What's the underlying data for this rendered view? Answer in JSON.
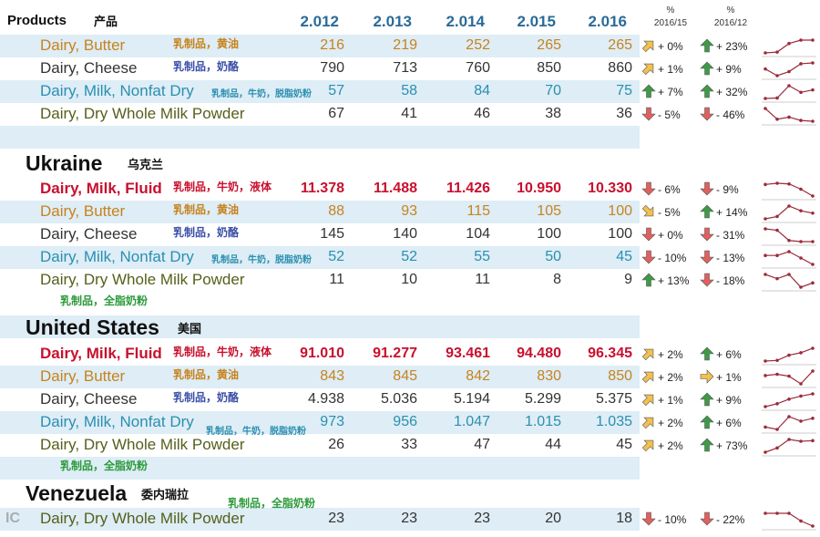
{
  "header": {
    "products_label": "Products",
    "products_cn": "产品",
    "years": [
      "2.012",
      "2.013",
      "2.014",
      "2.015",
      "2.016"
    ],
    "pct_col1": [
      "%",
      "2016/15"
    ],
    "pct_col2": [
      "%",
      "2016/12"
    ]
  },
  "colors": {
    "band": "#deedf6",
    "fluid": "#c8102e",
    "butter": "#c7831d",
    "cheese": "#333333",
    "nonfat": "#2b8fb0",
    "whole": "#55601a",
    "cn_butter": "#c7831d",
    "cn_cheese": "#3a4fa8",
    "cn_nonfat": "#2b8fb0",
    "cn_whole": "#2c9a3a",
    "cn_fluid": "#c8102e",
    "up_arrow": "#3e9a47",
    "down_arrow": "#e0605e",
    "diag_arrow": "#f2c14e",
    "spark": "#9b2c3a"
  },
  "chart_data": {
    "type": "table",
    "columns": [
      "Products",
      "2.012",
      "2.013",
      "2.014",
      "2.015",
      "2.016",
      "% 2016/15",
      "% 2016/12"
    ],
    "sections": [
      {
        "name": "",
        "name_cn": "",
        "rows": [
          {
            "product": "Dairy, Butter",
            "cn": "乳制品，黄油",
            "kind": "butter",
            "values": [
              216,
              219,
              252,
              265,
              265
            ],
            "display": [
              "216",
              "219",
              "252",
              "265",
              "265"
            ],
            "chg1": "+ 0%",
            "arrow1": "diag-up",
            "chg2": "+ 23%",
            "arrow2": "up"
          },
          {
            "product": "Dairy, Cheese",
            "cn": "乳制品，奶酪",
            "kind": "cheese",
            "values": [
              790,
              713,
              760,
              850,
              860
            ],
            "display": [
              "790",
              "713",
              "760",
              "850",
              "860"
            ],
            "chg1": "+ 1%",
            "arrow1": "diag-up",
            "chg2": "+ 9%",
            "arrow2": "up"
          },
          {
            "product": "Dairy, Milk, Nonfat Dry",
            "cn": "乳制品，牛奶，脱脂奶粉",
            "kind": "nonfat",
            "values": [
              57,
              58,
              84,
              70,
              75
            ],
            "display": [
              "57",
              "58",
              "84",
              "70",
              "75"
            ],
            "chg1": "+ 7%",
            "arrow1": "up",
            "chg2": "+ 32%",
            "arrow2": "up"
          },
          {
            "product": "Dairy, Dry Whole Milk Powder",
            "cn": "",
            "kind": "whole",
            "values": [
              67,
              41,
              46,
              38,
              36
            ],
            "display": [
              "67",
              "41",
              "46",
              "38",
              "36"
            ],
            "chg1": "- 5%",
            "arrow1": "down",
            "chg2": "- 46%",
            "arrow2": "down"
          }
        ]
      },
      {
        "name": "Ukraine",
        "name_cn": "乌克兰",
        "rows": [
          {
            "product": "Dairy, Milk, Fluid",
            "cn": "乳制品，牛奶，液体",
            "kind": "fluid",
            "values": [
              11378,
              11488,
              11426,
              10950,
              10330
            ],
            "display": [
              "11.378",
              "11.488",
              "11.426",
              "10.950",
              "10.330"
            ],
            "chg1": "- 6%",
            "arrow1": "down",
            "chg2": "- 9%",
            "arrow2": "down"
          },
          {
            "product": "Dairy, Butter",
            "cn": "乳制品，黄油",
            "kind": "butter",
            "values": [
              88,
              93,
              115,
              105,
              100
            ],
            "display": [
              "88",
              "93",
              "115",
              "105",
              "100"
            ],
            "chg1": "- 5%",
            "arrow1": "diag-down",
            "chg2": "+ 14%",
            "arrow2": "up"
          },
          {
            "product": "Dairy, Cheese",
            "cn": "乳制品，奶酪",
            "kind": "cheese",
            "values": [
              145,
              140,
              104,
              100,
              100
            ],
            "display": [
              "145",
              "140",
              "104",
              "100",
              "100"
            ],
            "chg1": "+ 0%",
            "arrow1": "down",
            "chg2": "- 31%",
            "arrow2": "down"
          },
          {
            "product": "Dairy, Milk, Nonfat Dry",
            "cn": "乳制品，牛奶，脱脂奶粉",
            "kind": "nonfat",
            "values": [
              52,
              52,
              55,
              50,
              45
            ],
            "display": [
              "52",
              "52",
              "55",
              "50",
              "45"
            ],
            "chg1": "- 10%",
            "arrow1": "down",
            "chg2": "- 13%",
            "arrow2": "down"
          },
          {
            "product": "Dairy, Dry Whole Milk Powder",
            "cn": "乳制品，全脂奶粉",
            "kind": "whole",
            "values": [
              11,
              10,
              11,
              8,
              9
            ],
            "display": [
              "11",
              "10",
              "11",
              "8",
              "9"
            ],
            "chg1": "+ 13%",
            "arrow1": "up",
            "chg2": "- 18%",
            "arrow2": "down"
          }
        ]
      },
      {
        "name": "United States",
        "name_cn": "美国",
        "rows": [
          {
            "product": "Dairy, Milk, Fluid",
            "cn": "乳制品，牛奶，液体",
            "kind": "fluid",
            "values": [
              91010,
              91277,
              93461,
              94480,
              96345
            ],
            "display": [
              "91.010",
              "91.277",
              "93.461",
              "94.480",
              "96.345"
            ],
            "chg1": "+ 2%",
            "arrow1": "diag-up",
            "chg2": "+ 6%",
            "arrow2": "up"
          },
          {
            "product": "Dairy, Butter",
            "cn": "乳制品，黄油",
            "kind": "butter",
            "values": [
              843,
              845,
              842,
              830,
              850
            ],
            "display": [
              "843",
              "845",
              "842",
              "830",
              "850"
            ],
            "chg1": "+ 2%",
            "arrow1": "diag-up",
            "chg2": "+ 1%",
            "arrow2": "right"
          },
          {
            "product": "Dairy, Cheese",
            "cn": "乳制品，奶酪",
            "kind": "cheese",
            "values": [
              4938,
              5036,
              5194,
              5299,
              5375
            ],
            "display": [
              "4.938",
              "5.036",
              "5.194",
              "5.299",
              "5.375"
            ],
            "chg1": "+ 1%",
            "arrow1": "diag-up",
            "chg2": "+ 9%",
            "arrow2": "up"
          },
          {
            "product": "Dairy, Milk, Nonfat Dry",
            "cn": "乳制品，牛奶，脱脂奶粉",
            "kind": "nonfat",
            "values": [
              973,
              956,
              1047,
              1015,
              1035
            ],
            "display": [
              "973",
              "956",
              "1.047",
              "1.015",
              "1.035"
            ],
            "chg1": "+ 2%",
            "arrow1": "diag-up",
            "chg2": "+ 6%",
            "arrow2": "up"
          },
          {
            "product": "Dairy, Dry Whole Milk Powder",
            "cn": "乳制品，全脂奶粉",
            "kind": "whole",
            "values": [
              26,
              33,
              47,
              44,
              45
            ],
            "display": [
              "26",
              "33",
              "47",
              "44",
              "45"
            ],
            "chg1": "+ 2%",
            "arrow1": "diag-up",
            "chg2": "+ 73%",
            "arrow2": "up"
          }
        ]
      },
      {
        "name": "Venezuela",
        "name_cn": "委内瑞拉",
        "rows": [
          {
            "product": "Dairy, Dry Whole Milk Powder",
            "cn": "乳制品，全脂奶粉",
            "kind": "whole",
            "values": [
              23,
              23,
              23,
              20,
              18
            ],
            "display": [
              "23",
              "23",
              "23",
              "20",
              "18"
            ],
            "chg1": "- 10%",
            "arrow1": "down",
            "chg2": "- 22%",
            "arrow2": "down"
          }
        ]
      }
    ]
  }
}
